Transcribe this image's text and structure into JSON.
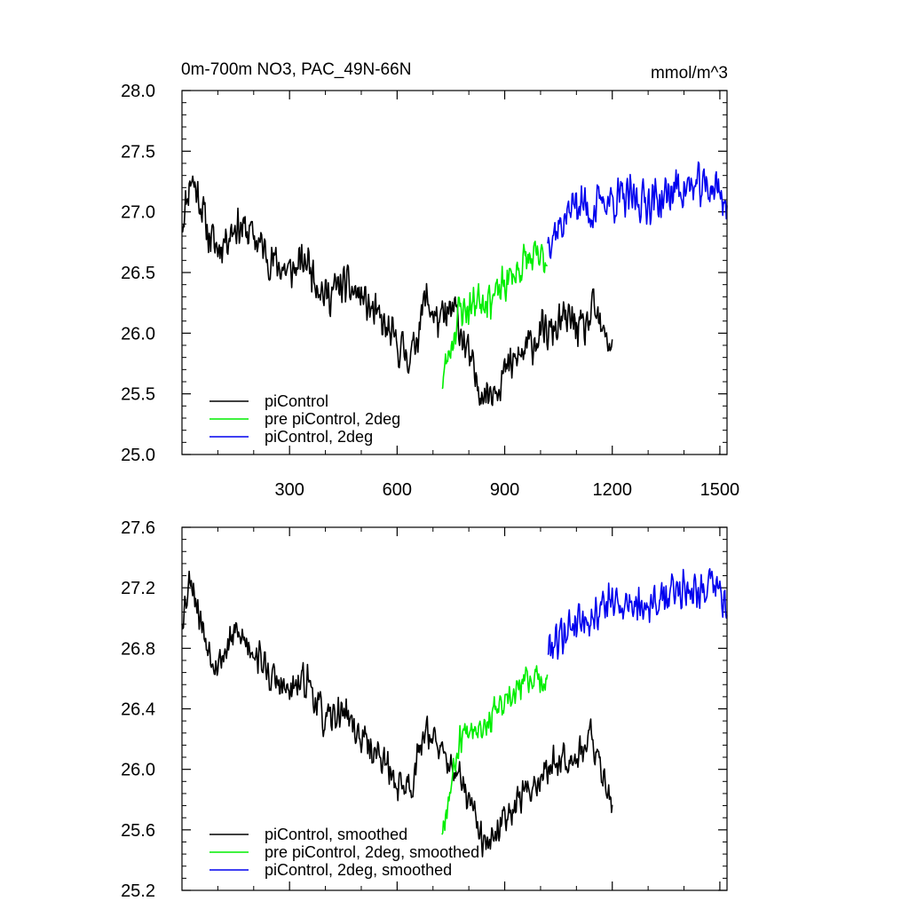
{
  "colors": {
    "black": "#000000",
    "green": "#00ee00",
    "blue": "#0000ee"
  },
  "chart_data": [
    {
      "type": "line",
      "title": "0m-700m NO3, PAC_49N-66N",
      "units": "mmol/m^3",
      "xlim": [
        0,
        1520
      ],
      "ylim": [
        25.0,
        28.0
      ],
      "x_tick_labels": [
        "300",
        "600",
        "900",
        "1200",
        "1500"
      ],
      "x_ticks": [
        300,
        600,
        900,
        1200,
        1500
      ],
      "y_tick_labels": [
        "25.0",
        "25.5",
        "26.0",
        "26.5",
        "27.0",
        "27.5",
        "28.0"
      ],
      "y_ticks": [
        25.0,
        25.5,
        26.0,
        26.5,
        27.0,
        27.5,
        28.0
      ],
      "legend_position": "lower-left",
      "series": [
        {
          "name": "piControl",
          "color_key": "black",
          "x_range": [
            0,
            1200
          ],
          "anchors": [
            [
              0,
              26.9
            ],
            [
              25,
              27.3
            ],
            [
              50,
              27.1
            ],
            [
              75,
              26.8
            ],
            [
              100,
              26.7
            ],
            [
              150,
              26.9
            ],
            [
              200,
              26.8
            ],
            [
              250,
              26.6
            ],
            [
              300,
              26.5
            ],
            [
              350,
              26.6
            ],
            [
              400,
              26.3
            ],
            [
              450,
              26.4
            ],
            [
              500,
              26.3
            ],
            [
              550,
              26.1
            ],
            [
              600,
              25.9
            ],
            [
              640,
              25.8
            ],
            [
              680,
              26.3
            ],
            [
              710,
              26.1
            ],
            [
              730,
              26.1
            ],
            [
              760,
              26.2
            ],
            [
              790,
              25.9
            ],
            [
              820,
              25.6
            ],
            [
              850,
              25.5
            ],
            [
              880,
              25.6
            ],
            [
              910,
              25.7
            ],
            [
              940,
              25.8
            ],
            [
              970,
              25.9
            ],
            [
              1000,
              26.0
            ],
            [
              1030,
              26.0
            ],
            [
              1060,
              26.1
            ],
            [
              1090,
              26.1
            ],
            [
              1120,
              26.0
            ],
            [
              1150,
              26.2
            ],
            [
              1170,
              26.0
            ],
            [
              1200,
              25.9
            ]
          ],
          "noise": 0.2,
          "seed": 11
        },
        {
          "name": "pre piControl, 2deg",
          "color_key": "green",
          "x_range": [
            725,
            1020
          ],
          "anchors": [
            [
              725,
              25.6
            ],
            [
              750,
              25.9
            ],
            [
              775,
              26.2
            ],
            [
              800,
              26.2
            ],
            [
              825,
              26.3
            ],
            [
              850,
              26.3
            ],
            [
              875,
              26.3
            ],
            [
              900,
              26.4
            ],
            [
              930,
              26.5
            ],
            [
              960,
              26.6
            ],
            [
              990,
              26.6
            ],
            [
              1020,
              26.6
            ]
          ],
          "noise": 0.2,
          "seed": 23
        },
        {
          "name": "piControl, 2deg",
          "color_key": "blue",
          "x_range": [
            1020,
            1520
          ],
          "anchors": [
            [
              1020,
              26.8
            ],
            [
              1060,
              26.9
            ],
            [
              1100,
              27.1
            ],
            [
              1140,
              27.0
            ],
            [
              1180,
              27.1
            ],
            [
              1220,
              27.1
            ],
            [
              1260,
              27.1
            ],
            [
              1300,
              27.1
            ],
            [
              1340,
              27.1
            ],
            [
              1380,
              27.2
            ],
            [
              1420,
              27.2
            ],
            [
              1460,
              27.2
            ],
            [
              1500,
              27.2
            ],
            [
              1520,
              27.0
            ]
          ],
          "noise": 0.22,
          "seed": 37
        }
      ]
    },
    {
      "type": "line",
      "xlim": [
        0,
        1520
      ],
      "ylim": [
        25.2,
        27.6
      ],
      "x_ticks": [
        300,
        600,
        900,
        1200,
        1500
      ],
      "y_tick_labels": [
        "25.2",
        "25.6",
        "26.0",
        "26.4",
        "26.8",
        "27.2",
        "27.6"
      ],
      "y_ticks": [
        25.2,
        25.6,
        26.0,
        26.4,
        26.8,
        27.2,
        27.6
      ],
      "legend_position": "lower-left",
      "series": [
        {
          "name": "piControl, smoothed",
          "color_key": "black",
          "x_range": [
            0,
            1200
          ],
          "anchors": [
            [
              0,
              27.0
            ],
            [
              25,
              27.3
            ],
            [
              50,
              27.0
            ],
            [
              75,
              26.8
            ],
            [
              100,
              26.7
            ],
            [
              150,
              26.9
            ],
            [
              200,
              26.8
            ],
            [
              250,
              26.6
            ],
            [
              300,
              26.5
            ],
            [
              350,
              26.6
            ],
            [
              400,
              26.3
            ],
            [
              450,
              26.4
            ],
            [
              500,
              26.2
            ],
            [
              550,
              26.1
            ],
            [
              600,
              25.9
            ],
            [
              640,
              25.9
            ],
            [
              680,
              26.3
            ],
            [
              720,
              26.1
            ],
            [
              760,
              26.0
            ],
            [
              800,
              25.8
            ],
            [
              840,
              25.5
            ],
            [
              870,
              25.5
            ],
            [
              900,
              25.7
            ],
            [
              940,
              25.8
            ],
            [
              980,
              25.9
            ],
            [
              1020,
              26.0
            ],
            [
              1060,
              26.1
            ],
            [
              1100,
              26.1
            ],
            [
              1140,
              26.2
            ],
            [
              1170,
              26.0
            ],
            [
              1200,
              25.8
            ]
          ],
          "noise": 0.14,
          "seed": 53
        },
        {
          "name": "pre piControl, 2deg, smoothed",
          "color_key": "green",
          "x_range": [
            725,
            1020
          ],
          "anchors": [
            [
              725,
              25.6
            ],
            [
              750,
              25.9
            ],
            [
              775,
              26.2
            ],
            [
              800,
              26.3
            ],
            [
              825,
              26.3
            ],
            [
              850,
              26.3
            ],
            [
              875,
              26.4
            ],
            [
              900,
              26.4
            ],
            [
              930,
              26.5
            ],
            [
              960,
              26.6
            ],
            [
              990,
              26.6
            ],
            [
              1020,
              26.6
            ]
          ],
          "noise": 0.12,
          "seed": 67
        },
        {
          "name": "piControl, 2deg, smoothed",
          "color_key": "blue",
          "x_range": [
            1020,
            1520
          ],
          "anchors": [
            [
              1020,
              26.8
            ],
            [
              1060,
              26.9
            ],
            [
              1100,
              27.0
            ],
            [
              1140,
              27.0
            ],
            [
              1180,
              27.1
            ],
            [
              1220,
              27.1
            ],
            [
              1260,
              27.1
            ],
            [
              1300,
              27.1
            ],
            [
              1340,
              27.1
            ],
            [
              1380,
              27.2
            ],
            [
              1420,
              27.2
            ],
            [
              1460,
              27.2
            ],
            [
              1500,
              27.2
            ],
            [
              1520,
              27.0
            ]
          ],
          "noise": 0.16,
          "seed": 79
        }
      ]
    }
  ]
}
